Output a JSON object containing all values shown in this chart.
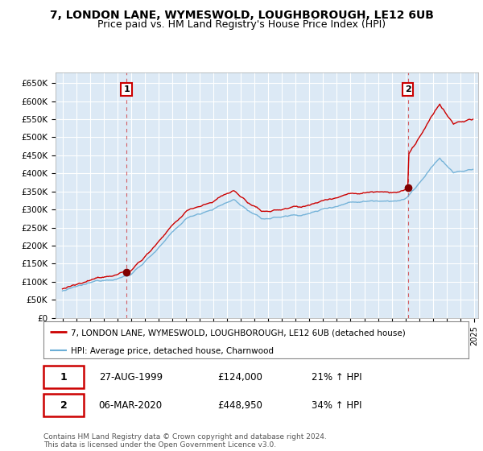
{
  "title": "7, LONDON LANE, WYMESWOLD, LOUGHBOROUGH, LE12 6UB",
  "subtitle": "Price paid vs. HM Land Registry's House Price Index (HPI)",
  "ylim": [
    0,
    680000
  ],
  "yticks": [
    0,
    50000,
    100000,
    150000,
    200000,
    250000,
    300000,
    350000,
    400000,
    450000,
    500000,
    550000,
    600000,
    650000
  ],
  "ytick_labels": [
    "£0",
    "£50K",
    "£100K",
    "£150K",
    "£200K",
    "£250K",
    "£300K",
    "£350K",
    "£400K",
    "£450K",
    "£500K",
    "£550K",
    "£600K",
    "£650K"
  ],
  "hpi_color": "#6baed6",
  "price_color": "#cc0000",
  "marker_color": "#800000",
  "sale1_year": 1999.65,
  "sale1_price": 124000,
  "sale2_year": 2020.18,
  "sale2_price": 448950,
  "legend_line1": "7, LONDON LANE, WYMESWOLD, LOUGHBOROUGH, LE12 6UB (detached house)",
  "legend_line2": "HPI: Average price, detached house, Charnwood",
  "annotation1_date": "27-AUG-1999",
  "annotation1_price": "£124,000",
  "annotation1_pct": "21% ↑ HPI",
  "annotation2_date": "06-MAR-2020",
  "annotation2_price": "£448,950",
  "annotation2_pct": "34% ↑ HPI",
  "footer": "Contains HM Land Registry data © Crown copyright and database right 2024.\nThis data is licensed under the Open Government Licence v3.0.",
  "background_color": "#ffffff",
  "chart_bg_color": "#dce9f5",
  "grid_color": "#ffffff",
  "title_fontsize": 10,
  "subtitle_fontsize": 9
}
